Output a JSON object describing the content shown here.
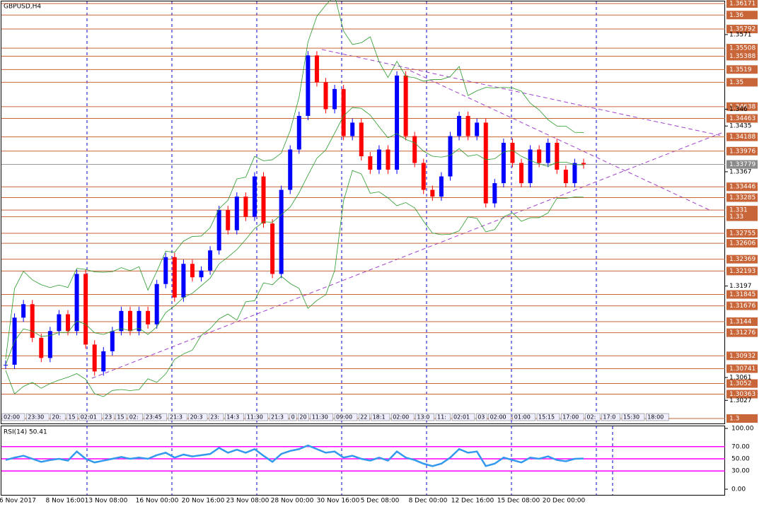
{
  "title": "GBPUSD,H4",
  "price_axis": {
    "range": [
      1.3,
      1.36171
    ],
    "levels": [
      1.36171,
      1.36,
      1.35792,
      1.35508,
      1.35388,
      1.3519,
      1.35,
      1.34638,
      1.34463,
      1.34188,
      1.33976,
      1.33446,
      1.33285,
      1.331,
      1.33,
      1.32755,
      1.32606,
      1.32369,
      1.32193,
      1.31845,
      1.31676,
      1.3144,
      1.31276,
      1.30932,
      1.30741,
      1.3052,
      1.30363,
      1.3
    ],
    "ticks": [
      1.3571,
      1.346,
      1.3435,
      1.3367,
      1.3197,
      1.3061,
      1.3027
    ],
    "current": 1.33779
  },
  "closes": [
    1.308,
    1.315,
    1.317,
    1.312,
    1.309,
    1.313,
    1.3155,
    1.313,
    1.3215,
    1.311,
    1.307,
    1.31,
    1.313,
    1.316,
    1.313,
    1.316,
    1.314,
    1.32,
    1.324,
    1.318,
    1.323,
    1.321,
    1.322,
    1.325,
    1.331,
    1.328,
    1.333,
    1.33,
    1.336,
    1.329,
    1.3215,
    1.334,
    1.34,
    1.345,
    1.354,
    1.35,
    1.346,
    1.349,
    1.342,
    1.344,
    1.339,
    1.337,
    1.34,
    1.337,
    1.351,
    1.342,
    1.338,
    1.334,
    1.333,
    1.336,
    1.342,
    1.345,
    1.342,
    1.344,
    1.332,
    1.335,
    1.341,
    1.338,
    1.335,
    1.34,
    1.338,
    1.341,
    1.337,
    1.335,
    1.338,
    1.33779
  ],
  "rsi": {
    "label": "RSI(14) 50.41",
    "range": [
      0,
      100
    ],
    "ticks": [
      {
        "value": 100,
        "label": "100.00"
      },
      {
        "value": 70,
        "label": "70.00"
      },
      {
        "value": 50,
        "label": "50.00"
      },
      {
        "value": 30,
        "label": "30.00"
      },
      {
        "value": 0,
        "label": "0.00"
      }
    ],
    "values": [
      48,
      52,
      55,
      50,
      45,
      48,
      50,
      47,
      62,
      50,
      44,
      47,
      50,
      53,
      50,
      52,
      50,
      56,
      60,
      52,
      57,
      54,
      56,
      58,
      68,
      60,
      65,
      60,
      66,
      55,
      45,
      58,
      63,
      66,
      72,
      66,
      60,
      62,
      52,
      55,
      50,
      47,
      52,
      47,
      62,
      52,
      48,
      42,
      38,
      42,
      52,
      66,
      60,
      62,
      38,
      42,
      52,
      48,
      44,
      52,
      50,
      54,
      48,
      46,
      50,
      50.41
    ]
  },
  "time_labels": [
    "6 Nov 2017",
    "8 Nov 16:00",
    "13 Nov 08:00",
    "16 Nov 00:00",
    "20 Nov 16:00",
    "23 Nov 08:00",
    "28 Nov 00:00",
    "30 Nov 16:00",
    "5 Dec 08:00",
    "8 Dec 00:00",
    "12 Dec 16:00",
    "15 Dec 08:00",
    "20 Dec 00:00"
  ],
  "session_tags": [
    "02:00",
    "23:30",
    "20:",
    "15",
    "02:01",
    "23",
    "15",
    "02:",
    "23:45",
    "21:3",
    "20:3",
    "23:",
    "14:3",
    "11:30",
    "21:3",
    "0",
    "20",
    "11:30",
    "09:00",
    "22",
    "18:1",
    "02:00",
    "13:0",
    "11:",
    "02:01",
    "03",
    "02:00",
    "01:00",
    "15:15",
    "17:00",
    "02:",
    "17:0",
    "15:30",
    "18:00"
  ]
}
